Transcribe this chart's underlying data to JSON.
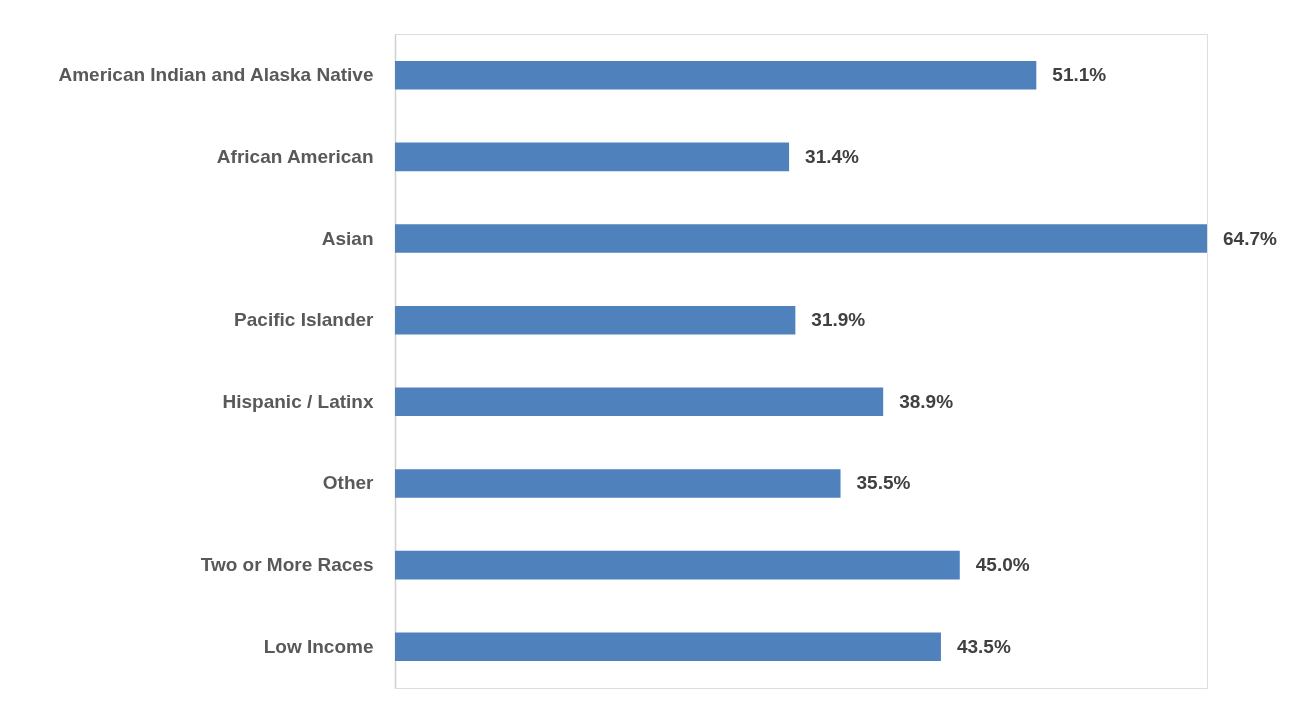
{
  "chart_data": {
    "type": "bar",
    "orientation": "horizontal",
    "color": "#4f81bd",
    "categories": [
      "American Indian and Alaska Native",
      "African American",
      "Asian",
      "Pacific Islander",
      "Hispanic / Latinx",
      "Other",
      "Two or More Races",
      "Low Income"
    ],
    "values": [
      51.1,
      31.4,
      64.7,
      31.9,
      38.9,
      35.5,
      45.0,
      43.5
    ],
    "value_labels": [
      "51.1%",
      "31.4%",
      "64.7%",
      "31.9%",
      "38.9%",
      "35.5%",
      "45.0%",
      "43.5%"
    ]
  }
}
